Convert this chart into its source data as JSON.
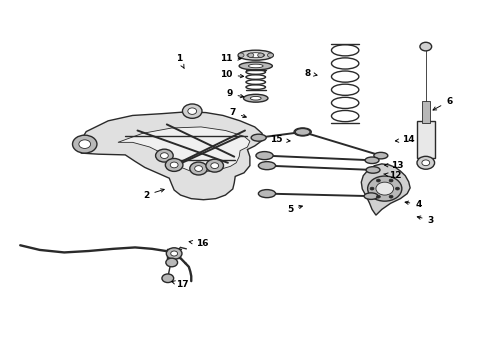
{
  "bg": "#ffffff",
  "lw_main": 1.0,
  "lw_thick": 1.4,
  "lw_thin": 0.6,
  "gray1": "#2a2a2a",
  "gray2": "#555555",
  "gray3": "#888888",
  "fill1": "#d0d0d0",
  "fill2": "#b8b8b8",
  "fill3": "#e8e8e8",
  "label_fs": 6.5,
  "labels": {
    "1": [
      0.365,
      0.838,
      0.376,
      0.81
    ],
    "2": [
      0.298,
      0.458,
      0.342,
      0.477
    ],
    "3": [
      0.88,
      0.388,
      0.845,
      0.4
    ],
    "4": [
      0.855,
      0.432,
      0.82,
      0.44
    ],
    "5": [
      0.592,
      0.418,
      0.625,
      0.43
    ],
    "6": [
      0.918,
      0.72,
      0.878,
      0.69
    ],
    "7": [
      0.475,
      0.688,
      0.51,
      0.672
    ],
    "8": [
      0.628,
      0.798,
      0.655,
      0.79
    ],
    "9": [
      0.468,
      0.74,
      0.505,
      0.73
    ],
    "10": [
      0.462,
      0.793,
      0.505,
      0.788
    ],
    "11": [
      0.462,
      0.84,
      0.5,
      0.838
    ],
    "12": [
      0.808,
      0.512,
      0.778,
      0.518
    ],
    "13": [
      0.812,
      0.54,
      0.778,
      0.542
    ],
    "14": [
      0.835,
      0.612,
      0.8,
      0.608
    ],
    "15": [
      0.565,
      0.612,
      0.6,
      0.608
    ],
    "16": [
      0.412,
      0.322,
      0.378,
      0.33
    ],
    "17": [
      0.372,
      0.208,
      0.348,
      0.218
    ]
  }
}
